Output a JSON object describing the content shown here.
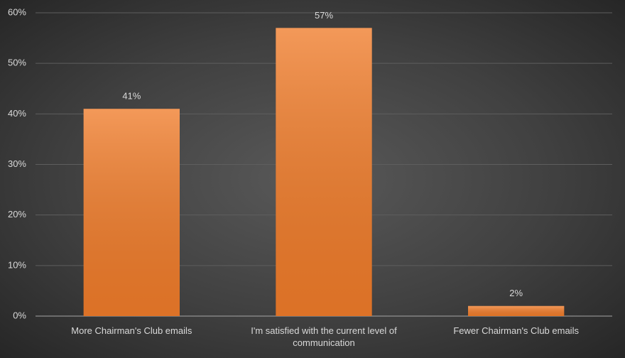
{
  "chart_data": {
    "type": "bar",
    "categories": [
      "More Chairman's Club emails",
      "I'm satisfied with the current level of communication",
      "Fewer Chairman's Club emails"
    ],
    "values": [
      41,
      57,
      2
    ],
    "value_labels": [
      "41%",
      "57%",
      "2%"
    ],
    "color": "#f07c2a",
    "ylim": [
      0,
      60
    ],
    "yticks": [
      {
        "value": 0,
        "label": "0%"
      },
      {
        "value": 10,
        "label": "10%"
      },
      {
        "value": 20,
        "label": "20%"
      },
      {
        "value": 30,
        "label": "30%"
      },
      {
        "value": 40,
        "label": "40%"
      },
      {
        "value": 50,
        "label": "50%"
      },
      {
        "value": 60,
        "label": "60%"
      }
    ],
    "grid": true
  }
}
